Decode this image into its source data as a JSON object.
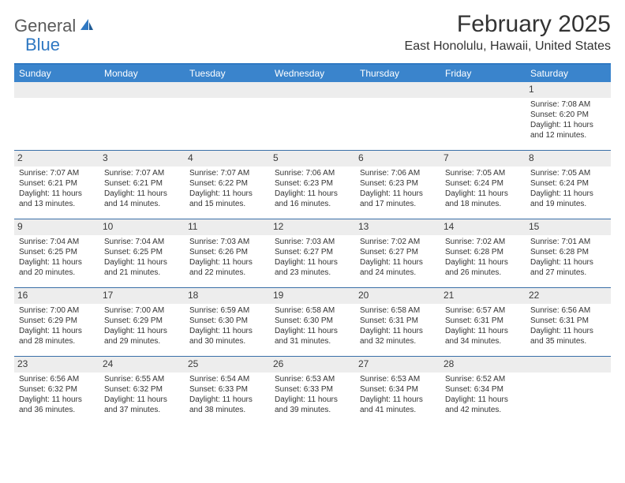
{
  "brand": {
    "part1": "General",
    "part2": "Blue"
  },
  "title": "February 2025",
  "location": "East Honolulu, Hawaii, United States",
  "colors": {
    "header_bg": "#3a84cc",
    "rule": "#2f78c2",
    "week_border": "#3a6fa8",
    "daynum_bg": "#ededed",
    "text": "#333333",
    "logo_gray": "#5a5a5a",
    "logo_blue": "#2f78c2"
  },
  "days_of_week": [
    "Sunday",
    "Monday",
    "Tuesday",
    "Wednesday",
    "Thursday",
    "Friday",
    "Saturday"
  ],
  "weeks": [
    [
      {
        "n": "",
        "sr": "",
        "ss": "",
        "dl1": "",
        "dl2": ""
      },
      {
        "n": "",
        "sr": "",
        "ss": "",
        "dl1": "",
        "dl2": ""
      },
      {
        "n": "",
        "sr": "",
        "ss": "",
        "dl1": "",
        "dl2": ""
      },
      {
        "n": "",
        "sr": "",
        "ss": "",
        "dl1": "",
        "dl2": ""
      },
      {
        "n": "",
        "sr": "",
        "ss": "",
        "dl1": "",
        "dl2": ""
      },
      {
        "n": "",
        "sr": "",
        "ss": "",
        "dl1": "",
        "dl2": ""
      },
      {
        "n": "1",
        "sr": "Sunrise: 7:08 AM",
        "ss": "Sunset: 6:20 PM",
        "dl1": "Daylight: 11 hours",
        "dl2": "and 12 minutes."
      }
    ],
    [
      {
        "n": "2",
        "sr": "Sunrise: 7:07 AM",
        "ss": "Sunset: 6:21 PM",
        "dl1": "Daylight: 11 hours",
        "dl2": "and 13 minutes."
      },
      {
        "n": "3",
        "sr": "Sunrise: 7:07 AM",
        "ss": "Sunset: 6:21 PM",
        "dl1": "Daylight: 11 hours",
        "dl2": "and 14 minutes."
      },
      {
        "n": "4",
        "sr": "Sunrise: 7:07 AM",
        "ss": "Sunset: 6:22 PM",
        "dl1": "Daylight: 11 hours",
        "dl2": "and 15 minutes."
      },
      {
        "n": "5",
        "sr": "Sunrise: 7:06 AM",
        "ss": "Sunset: 6:23 PM",
        "dl1": "Daylight: 11 hours",
        "dl2": "and 16 minutes."
      },
      {
        "n": "6",
        "sr": "Sunrise: 7:06 AM",
        "ss": "Sunset: 6:23 PM",
        "dl1": "Daylight: 11 hours",
        "dl2": "and 17 minutes."
      },
      {
        "n": "7",
        "sr": "Sunrise: 7:05 AM",
        "ss": "Sunset: 6:24 PM",
        "dl1": "Daylight: 11 hours",
        "dl2": "and 18 minutes."
      },
      {
        "n": "8",
        "sr": "Sunrise: 7:05 AM",
        "ss": "Sunset: 6:24 PM",
        "dl1": "Daylight: 11 hours",
        "dl2": "and 19 minutes."
      }
    ],
    [
      {
        "n": "9",
        "sr": "Sunrise: 7:04 AM",
        "ss": "Sunset: 6:25 PM",
        "dl1": "Daylight: 11 hours",
        "dl2": "and 20 minutes."
      },
      {
        "n": "10",
        "sr": "Sunrise: 7:04 AM",
        "ss": "Sunset: 6:25 PM",
        "dl1": "Daylight: 11 hours",
        "dl2": "and 21 minutes."
      },
      {
        "n": "11",
        "sr": "Sunrise: 7:03 AM",
        "ss": "Sunset: 6:26 PM",
        "dl1": "Daylight: 11 hours",
        "dl2": "and 22 minutes."
      },
      {
        "n": "12",
        "sr": "Sunrise: 7:03 AM",
        "ss": "Sunset: 6:27 PM",
        "dl1": "Daylight: 11 hours",
        "dl2": "and 23 minutes."
      },
      {
        "n": "13",
        "sr": "Sunrise: 7:02 AM",
        "ss": "Sunset: 6:27 PM",
        "dl1": "Daylight: 11 hours",
        "dl2": "and 24 minutes."
      },
      {
        "n": "14",
        "sr": "Sunrise: 7:02 AM",
        "ss": "Sunset: 6:28 PM",
        "dl1": "Daylight: 11 hours",
        "dl2": "and 26 minutes."
      },
      {
        "n": "15",
        "sr": "Sunrise: 7:01 AM",
        "ss": "Sunset: 6:28 PM",
        "dl1": "Daylight: 11 hours",
        "dl2": "and 27 minutes."
      }
    ],
    [
      {
        "n": "16",
        "sr": "Sunrise: 7:00 AM",
        "ss": "Sunset: 6:29 PM",
        "dl1": "Daylight: 11 hours",
        "dl2": "and 28 minutes."
      },
      {
        "n": "17",
        "sr": "Sunrise: 7:00 AM",
        "ss": "Sunset: 6:29 PM",
        "dl1": "Daylight: 11 hours",
        "dl2": "and 29 minutes."
      },
      {
        "n": "18",
        "sr": "Sunrise: 6:59 AM",
        "ss": "Sunset: 6:30 PM",
        "dl1": "Daylight: 11 hours",
        "dl2": "and 30 minutes."
      },
      {
        "n": "19",
        "sr": "Sunrise: 6:58 AM",
        "ss": "Sunset: 6:30 PM",
        "dl1": "Daylight: 11 hours",
        "dl2": "and 31 minutes."
      },
      {
        "n": "20",
        "sr": "Sunrise: 6:58 AM",
        "ss": "Sunset: 6:31 PM",
        "dl1": "Daylight: 11 hours",
        "dl2": "and 32 minutes."
      },
      {
        "n": "21",
        "sr": "Sunrise: 6:57 AM",
        "ss": "Sunset: 6:31 PM",
        "dl1": "Daylight: 11 hours",
        "dl2": "and 34 minutes."
      },
      {
        "n": "22",
        "sr": "Sunrise: 6:56 AM",
        "ss": "Sunset: 6:31 PM",
        "dl1": "Daylight: 11 hours",
        "dl2": "and 35 minutes."
      }
    ],
    [
      {
        "n": "23",
        "sr": "Sunrise: 6:56 AM",
        "ss": "Sunset: 6:32 PM",
        "dl1": "Daylight: 11 hours",
        "dl2": "and 36 minutes."
      },
      {
        "n": "24",
        "sr": "Sunrise: 6:55 AM",
        "ss": "Sunset: 6:32 PM",
        "dl1": "Daylight: 11 hours",
        "dl2": "and 37 minutes."
      },
      {
        "n": "25",
        "sr": "Sunrise: 6:54 AM",
        "ss": "Sunset: 6:33 PM",
        "dl1": "Daylight: 11 hours",
        "dl2": "and 38 minutes."
      },
      {
        "n": "26",
        "sr": "Sunrise: 6:53 AM",
        "ss": "Sunset: 6:33 PM",
        "dl1": "Daylight: 11 hours",
        "dl2": "and 39 minutes."
      },
      {
        "n": "27",
        "sr": "Sunrise: 6:53 AM",
        "ss": "Sunset: 6:34 PM",
        "dl1": "Daylight: 11 hours",
        "dl2": "and 41 minutes."
      },
      {
        "n": "28",
        "sr": "Sunrise: 6:52 AM",
        "ss": "Sunset: 6:34 PM",
        "dl1": "Daylight: 11 hours",
        "dl2": "and 42 minutes."
      },
      {
        "n": "",
        "sr": "",
        "ss": "",
        "dl1": "",
        "dl2": ""
      }
    ]
  ]
}
